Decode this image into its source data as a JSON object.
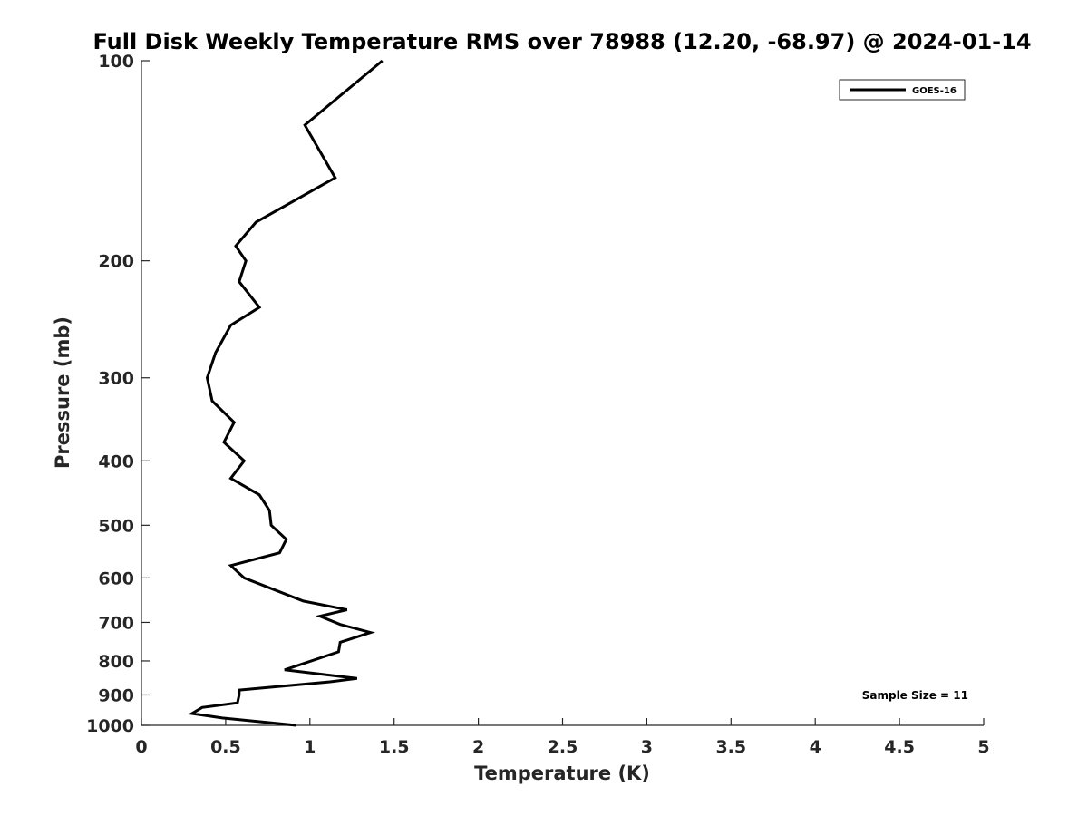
{
  "chart_data": {
    "type": "line",
    "title": "Full Disk Weekly Temperature RMS over 78988 (12.20, -68.97) @ 2024-01-14",
    "xlabel": "Temperature (K)",
    "ylabel": "Pressure (mb)",
    "xlim": [
      0,
      5
    ],
    "ylim": [
      100,
      1000
    ],
    "y_scale": "log",
    "y_reversed": true,
    "x_ticks": [
      "0",
      "0.5",
      "1",
      "1.5",
      "2",
      "2.5",
      "3",
      "3.5",
      "4",
      "4.5",
      "5"
    ],
    "y_ticks": [
      "100",
      "200",
      "300",
      "400",
      "500",
      "600",
      "700",
      "800",
      "900",
      "1000"
    ],
    "grid": false,
    "legend_position": "top-right",
    "annotation": "Sample Size = 11",
    "series": [
      {
        "name": "GOES-16",
        "color": "#000000",
        "points": [
          {
            "t": 1.43,
            "p": 100
          },
          {
            "t": 0.97,
            "p": 125
          },
          {
            "t": 1.15,
            "p": 150
          },
          {
            "t": 0.68,
            "p": 175
          },
          {
            "t": 0.56,
            "p": 190
          },
          {
            "t": 0.62,
            "p": 200
          },
          {
            "t": 0.58,
            "p": 215
          },
          {
            "t": 0.7,
            "p": 235
          },
          {
            "t": 0.53,
            "p": 250
          },
          {
            "t": 0.44,
            "p": 275
          },
          {
            "t": 0.39,
            "p": 300
          },
          {
            "t": 0.42,
            "p": 325
          },
          {
            "t": 0.55,
            "p": 350
          },
          {
            "t": 0.49,
            "p": 375
          },
          {
            "t": 0.61,
            "p": 400
          },
          {
            "t": 0.53,
            "p": 425
          },
          {
            "t": 0.7,
            "p": 450
          },
          {
            "t": 0.76,
            "p": 475
          },
          {
            "t": 0.77,
            "p": 500
          },
          {
            "t": 0.86,
            "p": 525
          },
          {
            "t": 0.82,
            "p": 550
          },
          {
            "t": 0.53,
            "p": 575
          },
          {
            "t": 0.61,
            "p": 600
          },
          {
            "t": 0.96,
            "p": 650
          },
          {
            "t": 1.22,
            "p": 670
          },
          {
            "t": 1.06,
            "p": 685
          },
          {
            "t": 1.18,
            "p": 705
          },
          {
            "t": 1.36,
            "p": 725
          },
          {
            "t": 1.18,
            "p": 750
          },
          {
            "t": 1.17,
            "p": 775
          },
          {
            "t": 0.85,
            "p": 825
          },
          {
            "t": 1.28,
            "p": 850
          },
          {
            "t": 1.12,
            "p": 860
          },
          {
            "t": 0.58,
            "p": 885
          },
          {
            "t": 0.58,
            "p": 900
          },
          {
            "t": 0.57,
            "p": 925
          },
          {
            "t": 0.36,
            "p": 940
          },
          {
            "t": 0.3,
            "p": 960
          },
          {
            "t": 0.48,
            "p": 975
          },
          {
            "t": 0.92,
            "p": 1000
          }
        ]
      }
    ]
  }
}
